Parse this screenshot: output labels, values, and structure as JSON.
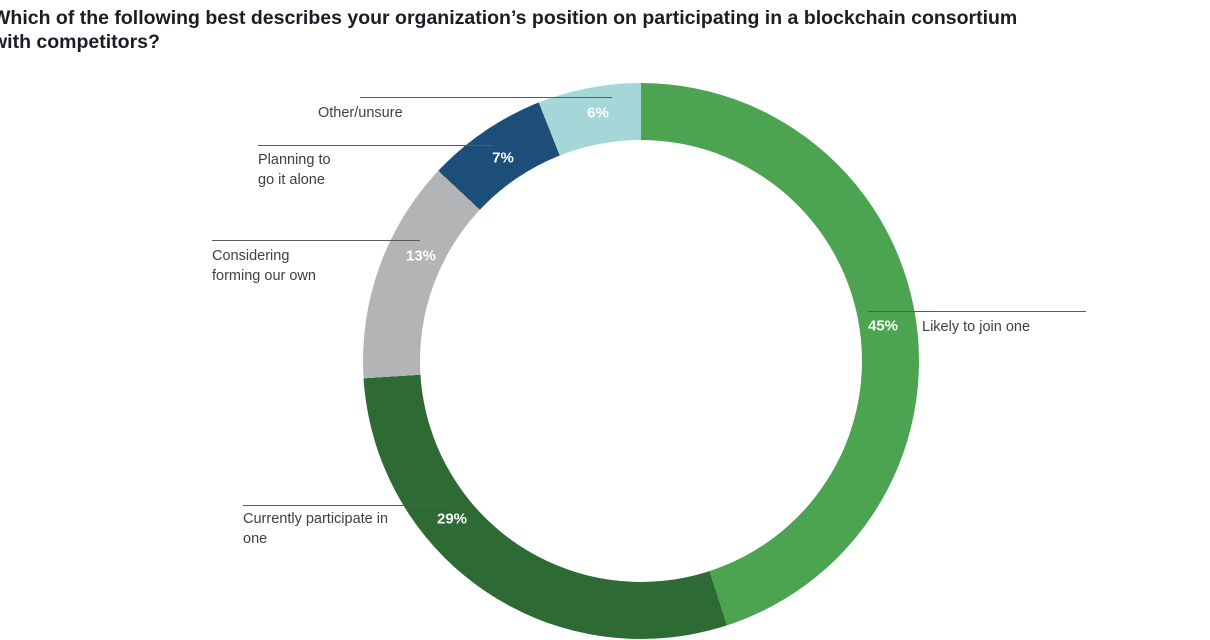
{
  "title": "Which of the following best describes your organization’s position on participating in a blockchain consortium\nwith competitors?",
  "chart_data": {
    "type": "pie",
    "subtype": "donut",
    "title": "Which of the following best describes your organization’s position on participating in a blockchain consortium with competitors?",
    "start_angle_deg": 0,
    "direction": "clockwise",
    "legend_position": "leader-line labels around ring",
    "segments": [
      {
        "label": "Likely to join one",
        "value": 45,
        "pct_label": "45%",
        "color": "#4ca350"
      },
      {
        "label": "Currently participate in one",
        "value": 29,
        "pct_label": "29%",
        "color": "#2d6a34"
      },
      {
        "label": "Considering forming our own",
        "value": 13,
        "pct_label": "13%",
        "color": "#b2b4b6"
      },
      {
        "label": "Planning to go it alone",
        "value": 7,
        "pct_label": "7%",
        "color": "#1d4e7a"
      },
      {
        "label": "Other/unsure",
        "value": 6,
        "pct_label": "6%",
        "color": "#a5d6d8"
      }
    ]
  }
}
